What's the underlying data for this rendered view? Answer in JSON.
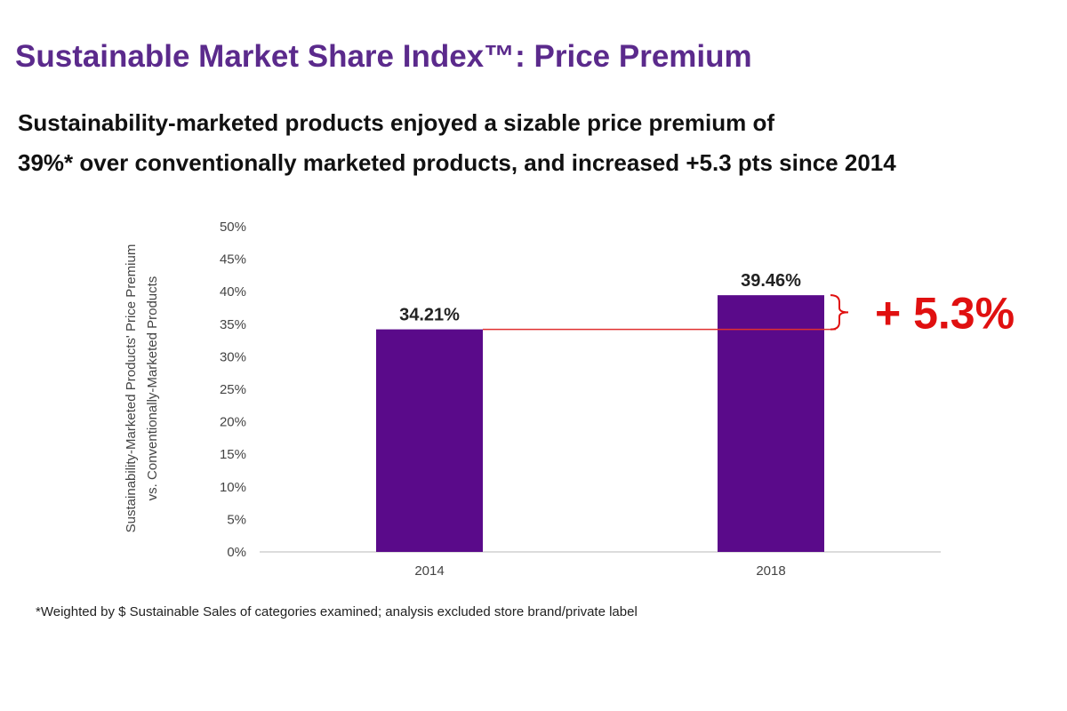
{
  "header": {
    "title": "Sustainable Market Share Index™: Price Premium",
    "subtitle_line1": "Sustainability-marketed products enjoyed a sizable price premium of",
    "subtitle_line2": "39%* over conventionally marketed products, and increased +5.3 pts since 2014"
  },
  "footnote": "*Weighted by $ Sustainable Sales of categories examined; analysis excluded store brand/private label",
  "chart_data": {
    "type": "bar",
    "categories": [
      "2014",
      "2018"
    ],
    "values": [
      34.21,
      39.46
    ],
    "value_labels": [
      "34.21%",
      "39.46%"
    ],
    "ylabel_line1": "Sustainability-Marketed Products' Price Premium",
    "ylabel_line2": "vs. Conventionally-Marketed Products",
    "ylim": [
      0,
      50
    ],
    "ytick_labels": [
      "0%",
      "5%",
      "10%",
      "15%",
      "20%",
      "25%",
      "30%",
      "35%",
      "40%",
      "45%",
      "50%"
    ],
    "grid": false,
    "annotation": "+ 5.3%",
    "colors": {
      "bar": "#5a0a8a",
      "reference_line": "#e03030",
      "annotation": "#e01010"
    }
  }
}
